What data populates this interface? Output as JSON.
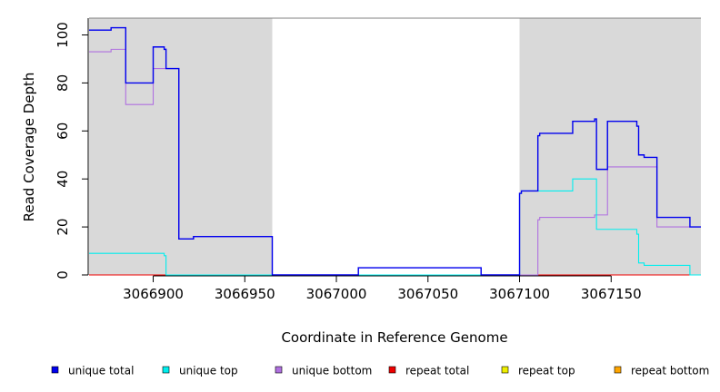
{
  "chart_data": {
    "type": "line",
    "title": "",
    "xlabel": "Coordinate in Reference Genome",
    "ylabel": "Read Coverage Depth",
    "xlim": [
      3066865,
      3067199
    ],
    "ylim": [
      0,
      107
    ],
    "x_ticks": [
      3066900,
      3066950,
      3067000,
      3067050,
      3067100,
      3067150
    ],
    "x_tick_labels": [
      "3066900",
      "3066950",
      "3067000",
      "3067050",
      "3067100",
      "3067150"
    ],
    "y_ticks": [
      0,
      20,
      40,
      60,
      80,
      100
    ],
    "y_tick_labels": [
      "0",
      "20",
      "40",
      "60",
      "80",
      "100"
    ],
    "shaded_regions": [
      {
        "x": [
          3066865,
          3066965
        ],
        "color": "#d9d9d9"
      },
      {
        "x": [
          3067100,
          3067199
        ],
        "color": "#d9d9d9"
      }
    ],
    "legend_position": "bottom",
    "series": [
      {
        "name": "unique total",
        "color": "#0000ee",
        "step": true,
        "points": [
          [
            3066865,
            102
          ],
          [
            3066877,
            102
          ],
          [
            3066877,
            103
          ],
          [
            3066885,
            103
          ],
          [
            3066885,
            80
          ],
          [
            3066900,
            80
          ],
          [
            3066900,
            95
          ],
          [
            3066906,
            95
          ],
          [
            3066906,
            94
          ],
          [
            3066907,
            94
          ],
          [
            3066907,
            86
          ],
          [
            3066914,
            86
          ],
          [
            3066914,
            15
          ],
          [
            3066922,
            15
          ],
          [
            3066922,
            16
          ],
          [
            3066965,
            16
          ],
          [
            3066965,
            0
          ],
          [
            3067012,
            0
          ],
          [
            3067012,
            3
          ],
          [
            3067079,
            3
          ],
          [
            3067079,
            0
          ],
          [
            3067100,
            0
          ],
          [
            3067100,
            34
          ],
          [
            3067101,
            34
          ],
          [
            3067101,
            35
          ],
          [
            3067110,
            35
          ],
          [
            3067110,
            58
          ],
          [
            3067111,
            58
          ],
          [
            3067111,
            59
          ],
          [
            3067129,
            59
          ],
          [
            3067129,
            64
          ],
          [
            3067141,
            64
          ],
          [
            3067141,
            65
          ],
          [
            3067142,
            65
          ],
          [
            3067142,
            44
          ],
          [
            3067148,
            44
          ],
          [
            3067148,
            64
          ],
          [
            3067164,
            64
          ],
          [
            3067164,
            62
          ],
          [
            3067165,
            62
          ],
          [
            3067165,
            50
          ],
          [
            3067168,
            50
          ],
          [
            3067168,
            49
          ],
          [
            3067175,
            49
          ],
          [
            3067175,
            24
          ],
          [
            3067193,
            24
          ],
          [
            3067193,
            20
          ],
          [
            3067199,
            20
          ]
        ]
      },
      {
        "name": "unique top",
        "color": "#00eeee",
        "step": true,
        "points": [
          [
            3066865,
            9
          ],
          [
            3066906,
            9
          ],
          [
            3066906,
            8
          ],
          [
            3066907,
            8
          ],
          [
            3066907,
            0
          ],
          [
            3067100,
            0
          ],
          [
            3067100,
            34
          ],
          [
            3067101,
            34
          ],
          [
            3067101,
            35
          ],
          [
            3067129,
            35
          ],
          [
            3067129,
            40
          ],
          [
            3067142,
            40
          ],
          [
            3067142,
            19
          ],
          [
            3067164,
            19
          ],
          [
            3067164,
            17
          ],
          [
            3067165,
            17
          ],
          [
            3067165,
            5
          ],
          [
            3067168,
            5
          ],
          [
            3067168,
            4
          ],
          [
            3067193,
            4
          ],
          [
            3067193,
            0
          ],
          [
            3067199,
            0
          ]
        ]
      },
      {
        "name": "unique bottom",
        "color": "#b070e0",
        "step": true,
        "points": [
          [
            3066865,
            93
          ],
          [
            3066877,
            93
          ],
          [
            3066877,
            94
          ],
          [
            3066885,
            94
          ],
          [
            3066885,
            71
          ],
          [
            3066900,
            71
          ],
          [
            3066900,
            86
          ],
          [
            3066914,
            86
          ],
          [
            3066914,
            15
          ],
          [
            3066922,
            15
          ],
          [
            3066922,
            16
          ],
          [
            3066965,
            16
          ],
          [
            3066965,
            0
          ],
          [
            3067012,
            0
          ],
          [
            3067012,
            3
          ],
          [
            3067079,
            3
          ],
          [
            3067079,
            0
          ],
          [
            3067110,
            0
          ],
          [
            3067110,
            23
          ],
          [
            3067111,
            23
          ],
          [
            3067111,
            24
          ],
          [
            3067141,
            24
          ],
          [
            3067141,
            25
          ],
          [
            3067148,
            25
          ],
          [
            3067148,
            45
          ],
          [
            3067175,
            45
          ],
          [
            3067175,
            20
          ],
          [
            3067199,
            20
          ]
        ]
      },
      {
        "name": "repeat total",
        "color": "#ee0000",
        "step": true,
        "points": [
          [
            3066865,
            0
          ],
          [
            3067199,
            0
          ]
        ]
      },
      {
        "name": "repeat top",
        "color": "#eeee00",
        "step": true,
        "points": [
          [
            3066865,
            0
          ],
          [
            3067199,
            0
          ]
        ]
      },
      {
        "name": "repeat bottom",
        "color": "#ffa500",
        "step": true,
        "points": [
          [
            3066865,
            0
          ],
          [
            3067199,
            0
          ]
        ]
      }
    ]
  }
}
